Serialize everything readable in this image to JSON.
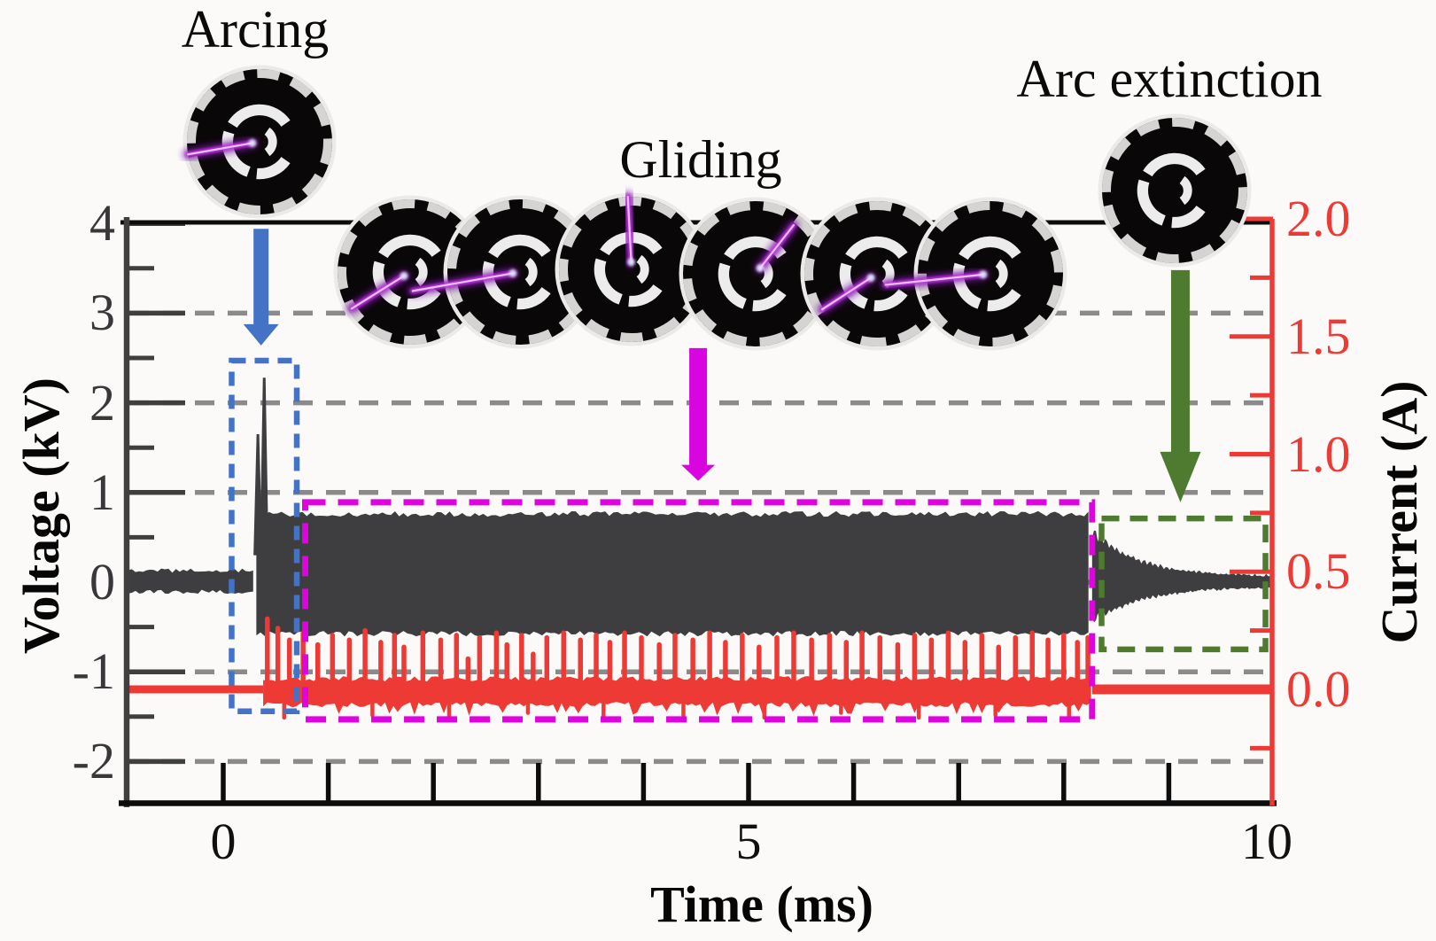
{
  "figure": {
    "annotations": {
      "arcing": "Arcing",
      "gliding": "Gliding",
      "arc_extinction": "Arc extinction"
    },
    "axis_titles": {
      "left": "Voltage (kV)",
      "bottom": "Time (ms)",
      "right": "Current (A)"
    },
    "colors": {
      "voltage_trace": "#3e3d40",
      "current_trace": "#ee3a35",
      "arcing_accent": "#4472c4",
      "gliding_accent": "#df03df",
      "extinction_accent": "#4e7b2f",
      "gridline": "#8a8a8a",
      "left_axis": "#3f3f3f",
      "black_axis": "#0c0c0c",
      "disc_rim": "#d6d4d2",
      "disc_electrode": "#ececec",
      "filament_glow": "#7714a0",
      "filament_mid": "#c238e2",
      "filament_core": "#eec6ff"
    }
  },
  "chart_data": {
    "type": "line",
    "title": "",
    "xlabel": "Time (ms)",
    "ylabel_left": "Voltage (kV)",
    "ylabel_right": "Current (A)",
    "xlim": [
      -0.94,
      10
    ],
    "grid": true,
    "voltage_axis": {
      "lim": [
        -2.48,
        4.03
      ],
      "tick_labels": [
        "4",
        "3",
        "2",
        "1",
        "0",
        "-1",
        "-2"
      ],
      "tick_values": [
        4,
        3,
        2,
        1,
        0,
        -1,
        -2
      ],
      "minor_ticks": [
        3.5,
        2.5,
        1.5,
        0.5,
        -0.5,
        -1.5
      ]
    },
    "current_axis": {
      "lim": [
        -0.49,
        2.0
      ],
      "tick_labels": [
        "2.0",
        "1.5",
        "1.0",
        "0.5",
        "0.0"
      ],
      "tick_values": [
        2.0,
        1.5,
        1.0,
        0.5,
        0.0
      ],
      "minor_ticks": [
        1.75,
        1.25,
        0.75,
        0.25,
        -0.25
      ]
    },
    "x_axis": {
      "tick_labels": [
        "0",
        "5",
        "10"
      ],
      "tick_values": [
        0,
        5,
        10
      ],
      "minor_ticks": [
        0,
        1,
        2,
        3,
        4,
        5,
        6,
        7,
        8,
        9
      ]
    },
    "gridlines_at_voltage": [
      3,
      2,
      1,
      0,
      -1,
      -2
    ],
    "voltage_series": {
      "name": "Voltage",
      "unit": "kV",
      "pre_discharge_noise": {
        "t_start": -0.94,
        "t_end": 0.315,
        "envelope_hi": 0.13,
        "envelope_lo": -0.11
      },
      "ignition_spikes": [
        {
          "t": 0.33,
          "peak_kV": 1.65
        },
        {
          "t": 0.39,
          "peak_kV": 2.28
        }
      ],
      "gliding_band": {
        "t_start": 0.315,
        "t_end": 8.27,
        "envelope_hi": 0.76,
        "envelope_lo": -0.575
      },
      "extinction_decay_envelope": [
        [
          8.27,
          0.62,
          -0.47
        ],
        [
          8.5,
          0.38,
          -0.31
        ],
        [
          8.75,
          0.25,
          -0.21
        ],
        [
          9.05,
          0.155,
          -0.135
        ],
        [
          9.4,
          0.105,
          -0.09
        ],
        [
          9.75,
          0.085,
          -0.075
        ],
        [
          10,
          0.08,
          -0.07
        ]
      ]
    },
    "current_series": {
      "name": "Current",
      "unit": "A",
      "flat_pre": {
        "t_start": -0.94,
        "t_end": 0.38,
        "level": 0.0
      },
      "active_baseline": {
        "t_start": 0.38,
        "t_end": 8.27,
        "hi": 0.045,
        "lo": -0.065
      },
      "spikes": [
        [
          0.42,
          0.3
        ],
        [
          0.52,
          0.26
        ],
        [
          0.63,
          0.21
        ],
        [
          0.76,
          0.24
        ],
        [
          0.9,
          0.19
        ],
        [
          1.04,
          0.23
        ],
        [
          1.2,
          0.21
        ],
        [
          1.35,
          0.25
        ],
        [
          1.5,
          0.2
        ],
        [
          1.63,
          0.23
        ],
        [
          1.72,
          0.18
        ],
        [
          1.9,
          0.24
        ],
        [
          2.07,
          0.21
        ],
        [
          2.22,
          0.23
        ],
        [
          2.33,
          0.13
        ],
        [
          2.44,
          0.22
        ],
        [
          2.6,
          0.24
        ],
        [
          2.7,
          0.19
        ],
        [
          2.84,
          0.23
        ],
        [
          2.95,
          0.15
        ],
        [
          3.08,
          0.22
        ],
        [
          3.24,
          0.24
        ],
        [
          3.4,
          0.21
        ],
        [
          3.55,
          0.23
        ],
        [
          3.68,
          0.2
        ],
        [
          3.82,
          0.24
        ],
        [
          3.98,
          0.22
        ],
        [
          4.15,
          0.19
        ],
        [
          4.3,
          0.23
        ],
        [
          4.47,
          0.21
        ],
        [
          4.63,
          0.24
        ],
        [
          4.78,
          0.2
        ],
        [
          4.94,
          0.23
        ],
        [
          5.1,
          0.18
        ],
        [
          5.27,
          0.22
        ],
        [
          5.43,
          0.24
        ],
        [
          5.6,
          0.21
        ],
        [
          5.77,
          0.23
        ],
        [
          5.93,
          0.2
        ],
        [
          6.08,
          0.24
        ],
        [
          6.25,
          0.22
        ],
        [
          6.42,
          0.19
        ],
        [
          6.58,
          0.23
        ],
        [
          6.74,
          0.21
        ],
        [
          6.9,
          0.24
        ],
        [
          7.06,
          0.2
        ],
        [
          7.22,
          0.23
        ],
        [
          7.38,
          0.18
        ],
        [
          7.54,
          0.22
        ],
        [
          7.7,
          0.24
        ],
        [
          7.85,
          0.21
        ],
        [
          8.0,
          0.23
        ],
        [
          8.13,
          0.2
        ],
        [
          8.23,
          0.22
        ]
      ],
      "dips": [
        [
          0.58,
          -0.12
        ],
        [
          1.42,
          -0.11
        ],
        [
          2.15,
          -0.12
        ],
        [
          2.9,
          -0.1
        ],
        [
          3.62,
          -0.12
        ],
        [
          4.38,
          -0.11
        ],
        [
          5.15,
          -0.12
        ],
        [
          5.88,
          -0.1
        ],
        [
          6.62,
          -0.12
        ],
        [
          7.35,
          -0.11
        ],
        [
          8.05,
          -0.13
        ]
      ],
      "flat_post": {
        "t_start": 8.27,
        "t_end": 10,
        "level": 0.0
      }
    },
    "regions": [
      {
        "name": "arcing-region-box",
        "color": "#4472c4",
        "t": [
          0.08,
          0.7
        ],
        "voltage_span": [
          2.47,
          -1.44
        ]
      },
      {
        "name": "gliding-region-box",
        "color": "#df03df",
        "t": [
          0.78,
          8.27
        ],
        "voltage_span": [
          0.89,
          -1.53
        ]
      },
      {
        "name": "extinction-region-box",
        "color": "#4e7b2f",
        "t": [
          8.36,
          9.92
        ],
        "voltage_span": [
          0.71,
          -0.75
        ]
      }
    ],
    "arrows": [
      {
        "name": "arcing-arrow",
        "color": "#4472c4",
        "t": 0.36,
        "v_from": 3.94,
        "v_to": 2.64
      },
      {
        "name": "gliding-arrow",
        "color": "#d905e0",
        "t": 4.52,
        "v_from": 2.61,
        "v_to": 1.13
      },
      {
        "name": "extinction-arrow",
        "color": "#4e7b2f",
        "t": 9.11,
        "v_from": 3.48,
        "v_to": 0.89
      }
    ],
    "plasma_snapshots": {
      "arcing": [
        {
          "filament_angle_deg": 190,
          "filament_len": 1.0
        }
      ],
      "gliding": [
        {
          "filament_angle_deg": 212,
          "filament_len": 0.95
        },
        {
          "filament_angle_deg": 190,
          "filament_len": 1.5
        },
        {
          "filament_angle_deg": 93,
          "filament_len": 1.0
        },
        {
          "filament_angle_deg": 52,
          "filament_len": 0.85
        },
        {
          "filament_angle_deg": 213,
          "filament_len": 0.9
        },
        {
          "filament_angle_deg": 186,
          "filament_len": 1.45
        }
      ],
      "arc_extinction": [
        {
          "filament_angle_deg": null,
          "filament_len": 0
        }
      ]
    }
  }
}
